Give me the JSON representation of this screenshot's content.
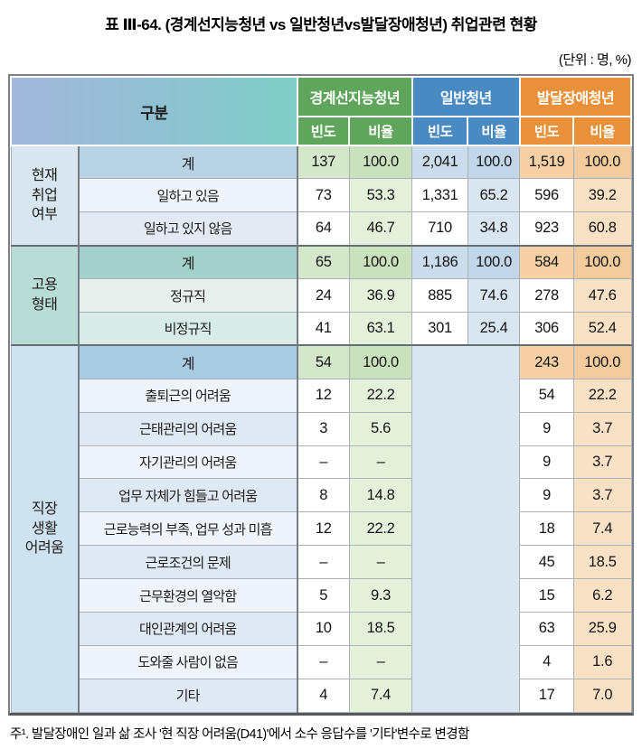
{
  "title": "표 Ⅲ-64. (경계선지능청년 vs 일반청년vs발달장애청년) 취업관련 현황",
  "unit_note": "(단위 : 명, %)",
  "footnote": "주¹. 발달장애인 일과 삶 조사 '현 직장 어려움(D41)'에서 소수 응답수를 '기타'변수로 변경함",
  "colors": {
    "group_borderline": "#5fa55c",
    "group_general": "#4a8ac2",
    "group_developmental": "#e8913a"
  },
  "table": {
    "corner_header": "구분",
    "group_headers": [
      {
        "label": "경계선지능청년",
        "color": "#5fa55c"
      },
      {
        "label": "일반청년",
        "color": "#4a8ac2"
      },
      {
        "label": "발달장애청년",
        "color": "#e8913a"
      }
    ],
    "sub_headers": [
      "빈도",
      "비율"
    ],
    "empty_value": "–",
    "sections": [
      {
        "group": "현재\n취업\n여부",
        "rows": [
          {
            "label": "계",
            "total": true,
            "values": [
              "137",
              "100.0",
              "2,041",
              "100.0",
              "1,519",
              "100.0"
            ]
          },
          {
            "label": "일하고 있음",
            "values": [
              "73",
              "53.3",
              "1,331",
              "65.2",
              "596",
              "39.2"
            ]
          },
          {
            "label": "일하고 있지 않음",
            "values": [
              "64",
              "46.7",
              "710",
              "34.8",
              "923",
              "60.8"
            ]
          }
        ]
      },
      {
        "group": "고용\n형태",
        "rows": [
          {
            "label": "계",
            "total": true,
            "values": [
              "65",
              "100.0",
              "1,186",
              "100.0",
              "584",
              "100.0"
            ]
          },
          {
            "label": "정규직",
            "values": [
              "24",
              "36.9",
              "885",
              "74.6",
              "278",
              "47.6"
            ]
          },
          {
            "label": "비정규직",
            "values": [
              "41",
              "63.1",
              "301",
              "25.4",
              "306",
              "52.4"
            ]
          }
        ]
      },
      {
        "group": "직장\n생활\n어려움",
        "merged_group": 1,
        "rows": [
          {
            "label": "계",
            "total": true,
            "values": [
              "54",
              "100.0",
              "243",
              "100.0"
            ]
          },
          {
            "label": "출퇴근의 어려움",
            "values": [
              "12",
              "22.2",
              "54",
              "22.2"
            ]
          },
          {
            "label": "근태관리의 어려움",
            "values": [
              "3",
              "5.6",
              "9",
              "3.7"
            ]
          },
          {
            "label": "자기관리의 어려움",
            "values": [
              "–",
              "–",
              "9",
              "3.7"
            ]
          },
          {
            "label": "업무 자체가 힘들고 어려움",
            "values": [
              "8",
              "14.8",
              "9",
              "3.7"
            ]
          },
          {
            "label": "근로능력의 부족, 업무 성과 미흡",
            "values": [
              "12",
              "22.2",
              "18",
              "7.4"
            ]
          },
          {
            "label": "근로조건의 문제",
            "values": [
              "–",
              "–",
              "45",
              "18.5"
            ]
          },
          {
            "label": "근무환경의 열악함",
            "values": [
              "5",
              "9.3",
              "15",
              "6.2"
            ]
          },
          {
            "label": "대인관계의 어려움",
            "values": [
              "10",
              "18.5",
              "63",
              "25.9"
            ]
          },
          {
            "label": "도와줄 사람이 없음",
            "values": [
              "–",
              "–",
              "4",
              "1.6"
            ]
          },
          {
            "label": "기타",
            "values": [
              "4",
              "7.4",
              "17",
              "7.0"
            ]
          }
        ]
      }
    ]
  }
}
